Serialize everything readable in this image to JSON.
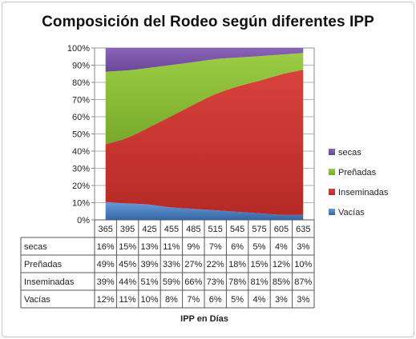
{
  "chart_data": {
    "type": "area",
    "stacked": "percent",
    "title": "Composición del Rodeo según diferentes IPP",
    "xlabel": "IPP en Días",
    "ylabel": "",
    "categories": [
      "365",
      "395",
      "425",
      "455",
      "485",
      "515",
      "545",
      "575",
      "605",
      "635"
    ],
    "y_ticks": [
      "0%",
      "10%",
      "20%",
      "30%",
      "40%",
      "50%",
      "60%",
      "70%",
      "80%",
      "90%",
      "100%"
    ],
    "ylim": [
      0,
      100
    ],
    "grid": true,
    "legend_position": "right",
    "series": [
      {
        "name": "Vacías",
        "color": "#4f81bd",
        "values": [
          12,
          11,
          10,
          8,
          7,
          6,
          5,
          4,
          3,
          3
        ],
        "labels": [
          "12%",
          "11%",
          "10%",
          "8%",
          "7%",
          "6%",
          "5%",
          "4%",
          "3%",
          "3%"
        ]
      },
      {
        "name": "Inseminadas",
        "color": "#c0504d",
        "values": [
          39,
          44,
          51,
          59,
          66,
          73,
          78,
          81,
          85,
          87
        ],
        "labels": [
          "39%",
          "44%",
          "51%",
          "59%",
          "66%",
          "73%",
          "78%",
          "81%",
          "85%",
          "87%"
        ]
      },
      {
        "name": "Preñadas",
        "color": "#9bbb59",
        "values": [
          49,
          45,
          39,
          33,
          27,
          22,
          18,
          15,
          12,
          10
        ],
        "labels": [
          "49%",
          "45%",
          "39%",
          "33%",
          "27%",
          "22%",
          "18%",
          "15%",
          "12%",
          "10%"
        ]
      },
      {
        "name": "secas",
        "color": "#8064a2",
        "values": [
          16,
          15,
          13,
          11,
          9,
          7,
          6,
          5,
          4,
          3
        ],
        "labels": [
          "16%",
          "15%",
          "13%",
          "11%",
          "9%",
          "7%",
          "6%",
          "5%",
          "4%",
          "3%"
        ]
      }
    ],
    "table_row_order": [
      "secas",
      "Preñadas",
      "Inseminadas",
      "Vacías"
    ],
    "legend_order": [
      "secas",
      "Preñadas",
      "Inseminadas",
      "Vacías"
    ]
  }
}
